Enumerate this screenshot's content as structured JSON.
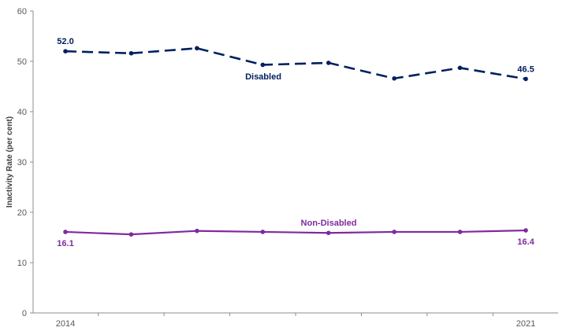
{
  "chart_data": {
    "type": "line",
    "x": [
      2014,
      2015,
      2016,
      2017,
      2018,
      2019,
      2020,
      2021
    ],
    "x_tick_labels": [
      {
        "x": 2014,
        "label": "2014"
      },
      {
        "x": 2021,
        "label": "2021"
      }
    ],
    "ylabel": "Inactivity Rate (per cent)",
    "ylim": [
      0,
      60
    ],
    "y_ticks": [
      0,
      10,
      20,
      30,
      40,
      50,
      60
    ],
    "grid": false,
    "series": [
      {
        "name": "Disabled",
        "color": "#002060",
        "dashed": true,
        "values": [
          52.0,
          51.6,
          52.6,
          49.3,
          49.7,
          46.6,
          48.7,
          46.5
        ],
        "data_labels": [
          {
            "index": 0,
            "text": "52.0"
          },
          {
            "index": 7,
            "text": "46.5"
          }
        ]
      },
      {
        "name": "Non-Disabled",
        "color": "#7F2A9E",
        "dashed": false,
        "values": [
          16.1,
          15.6,
          16.3,
          16.1,
          15.9,
          16.1,
          16.1,
          16.4
        ],
        "data_labels": [
          {
            "index": 0,
            "text": "16.1"
          },
          {
            "index": 7,
            "text": "16.4"
          }
        ]
      }
    ]
  }
}
